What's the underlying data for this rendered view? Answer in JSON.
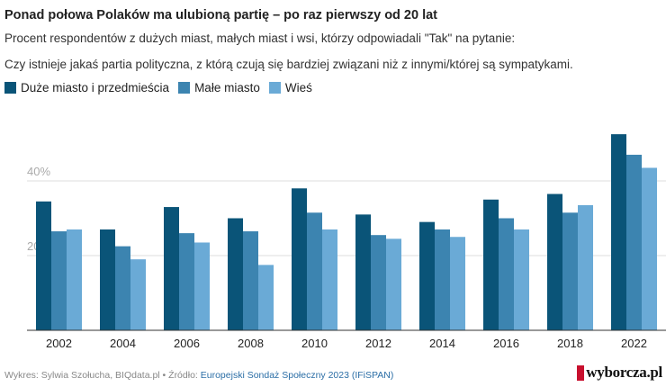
{
  "title": "Ponad połowa Polaków ma ulubioną partię – po raz pierwszy od 20 lat",
  "subtitle_line1": "Procent respondentów z dużych miast, małych miast i wsi, którzy odpowiadali \"Tak\" na pytanie:",
  "subtitle_line2": "Czy istnieje jakaś partia polityczna, z którą czują się bardziej związani niż z innymi/której są sympatykami.",
  "footer": {
    "credit": "Wykres: Sylwia Szołucha, BIQdata.pl • Źródło: ",
    "source": "Europejski Sondaż Społeczny 2023 (IFiSPAN)"
  },
  "logo": "wyborcza.pl",
  "colors": {
    "series1": "#0a5478",
    "series2": "#3c84b0",
    "series3": "#6aaad6"
  },
  "chart_data": {
    "type": "bar",
    "categories": [
      "2002",
      "2004",
      "2006",
      "2008",
      "2010",
      "2012",
      "2014",
      "2016",
      "2018",
      "2022"
    ],
    "series": [
      {
        "name": "Duże miasto i przedmieścia",
        "values": [
          34.5,
          27,
          33,
          30,
          38,
          31,
          29,
          35,
          36.5,
          52.5
        ]
      },
      {
        "name": "Małe miasto",
        "values": [
          26.5,
          22.5,
          26,
          26.5,
          31.5,
          25.5,
          27,
          30,
          31.5,
          47
        ]
      },
      {
        "name": "Wieś",
        "values": [
          27,
          19,
          23.5,
          17.5,
          27,
          24.5,
          25,
          27,
          33.5,
          43.5
        ]
      }
    ],
    "y_ticks": [
      "20",
      "40%"
    ],
    "ylim": [
      0,
      54
    ],
    "grid": true,
    "legend": "top-left"
  }
}
